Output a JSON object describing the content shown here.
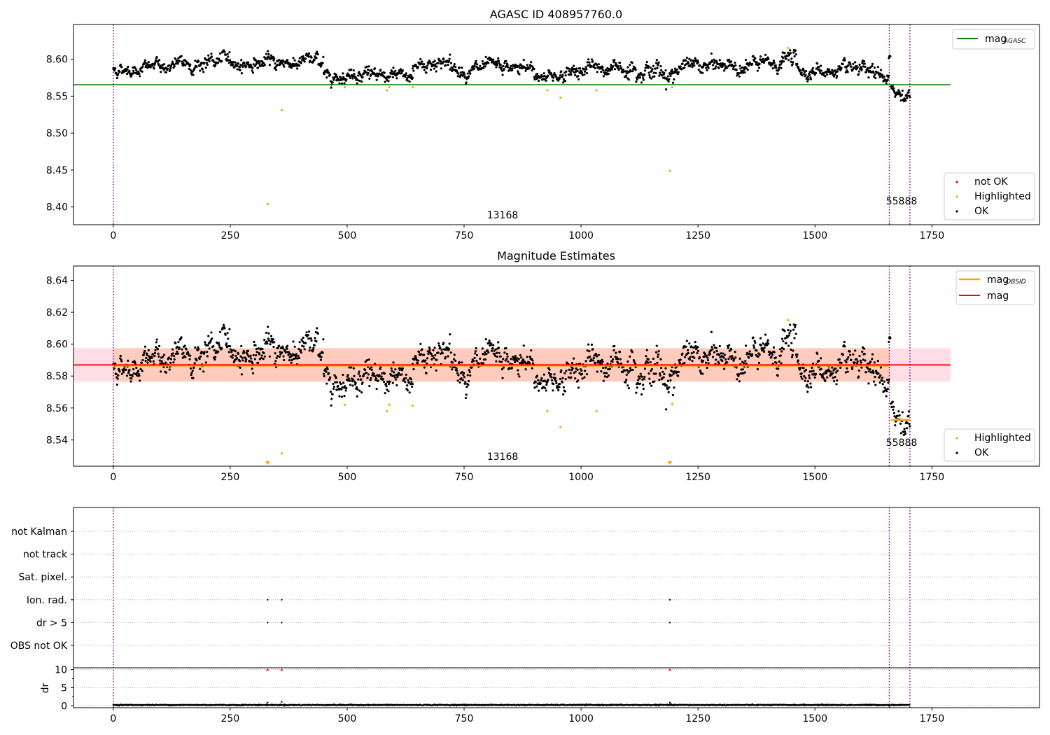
{
  "chart_data": [
    {
      "type": "scatter",
      "title": "AGASC ID 408957760.0",
      "xlabel": "",
      "ylabel": "",
      "xlim": [
        -85,
        1980
      ],
      "ylim": [
        8.376,
        8.647
      ],
      "xticks": [
        0,
        250,
        500,
        750,
        1000,
        1250,
        1500,
        1750
      ],
      "yticks": [
        8.4,
        8.45,
        8.5,
        8.55,
        8.6
      ],
      "ytick_labels": [
        "8.40",
        "8.45",
        "8.50",
        "8.55",
        "8.60"
      ],
      "grid": false,
      "legend_upper": {
        "position": "top-right",
        "entries": [
          {
            "label": "mag",
            "subscript": "AGASC",
            "color": "#008000",
            "kind": "line"
          }
        ]
      },
      "legend_lower": {
        "position": "bottom-right",
        "entries": [
          {
            "label": "not OK",
            "color": "#ff0000",
            "kind": "dot"
          },
          {
            "label": "Highlighted",
            "color": "#ffa500",
            "kind": "dot"
          },
          {
            "label": "OK",
            "color": "#000000",
            "kind": "dot"
          }
        ]
      },
      "vlines": [
        0,
        1659,
        1703
      ],
      "vline_color": "#800080",
      "hline": {
        "y": 8.5655,
        "x0": -85,
        "x1": 1790,
        "color": "#008000"
      },
      "annotations": [
        {
          "text": "13168",
          "x": 830,
          "y": 8.385
        },
        {
          "text": "55888",
          "x": 1681,
          "y": 8.402
        }
      ],
      "segments": [
        {
          "x0": 0,
          "x1": 90,
          "y0": 8.586,
          "y1": 8.59,
          "sd": 0.004
        },
        {
          "x0": 90,
          "x1": 260,
          "y0": 8.589,
          "y1": 8.599,
          "sd": 0.006
        },
        {
          "x0": 260,
          "x1": 450,
          "y0": 8.594,
          "y1": 8.598,
          "sd": 0.005
        },
        {
          "x0": 450,
          "x1": 560,
          "y0": 8.578,
          "y1": 8.585,
          "sd": 0.005
        },
        {
          "x0": 560,
          "x1": 640,
          "y0": 8.572,
          "y1": 8.576,
          "sd": 0.005
        },
        {
          "x0": 640,
          "x1": 720,
          "y0": 8.59,
          "y1": 8.6,
          "sd": 0.006
        },
        {
          "x0": 720,
          "x1": 900,
          "y0": 8.585,
          "y1": 8.586,
          "sd": 0.005
        },
        {
          "x0": 900,
          "x1": 980,
          "y0": 8.578,
          "y1": 8.58,
          "sd": 0.005
        },
        {
          "x0": 980,
          "x1": 1100,
          "y0": 8.586,
          "y1": 8.588,
          "sd": 0.006
        },
        {
          "x0": 1100,
          "x1": 1200,
          "y0": 8.594,
          "y1": 8.578,
          "sd": 0.008
        },
        {
          "x0": 1200,
          "x1": 1430,
          "y0": 8.589,
          "y1": 8.593,
          "sd": 0.006
        },
        {
          "x0": 1430,
          "x1": 1460,
          "y0": 8.602,
          "y1": 8.6,
          "sd": 0.006
        },
        {
          "x0": 1460,
          "x1": 1600,
          "y0": 8.586,
          "y1": 8.58,
          "sd": 0.005
        },
        {
          "x0": 1600,
          "x1": 1658,
          "y0": 8.58,
          "y1": 8.575,
          "sd": 0.006
        },
        {
          "x0": 1658,
          "x1": 1662,
          "y0": 8.595,
          "y1": 8.597,
          "sd": 0.004
        },
        {
          "x0": 1663,
          "x1": 1703,
          "y0": 8.553,
          "y1": 8.555,
          "sd": 0.006
        }
      ],
      "highlighted_points": [
        {
          "x": 330,
          "y": 8.404
        },
        {
          "x": 360,
          "y": 8.531
        },
        {
          "x": 495,
          "y": 8.562
        },
        {
          "x": 585,
          "y": 8.558
        },
        {
          "x": 590,
          "y": 8.562
        },
        {
          "x": 640,
          "y": 8.562
        },
        {
          "x": 928,
          "y": 8.558
        },
        {
          "x": 956,
          "y": 8.548
        },
        {
          "x": 1033,
          "y": 8.558
        },
        {
          "x": 1190,
          "y": 8.449
        },
        {
          "x": 1195,
          "y": 8.562
        },
        {
          "x": 1443,
          "y": 8.615
        }
      ]
    },
    {
      "type": "scatter",
      "title": "Magnitude Estimates",
      "xlabel": "",
      "ylabel": "",
      "xlim": [
        -85,
        1980
      ],
      "ylim": [
        8.5235,
        8.649
      ],
      "xticks": [
        0,
        250,
        500,
        750,
        1000,
        1250,
        1500,
        1750
      ],
      "yticks": [
        8.54,
        8.56,
        8.58,
        8.6,
        8.62,
        8.64
      ],
      "ytick_labels": [
        "8.54",
        "8.56",
        "8.58",
        "8.60",
        "8.62",
        "8.64"
      ],
      "grid": false,
      "legend_upper": {
        "position": "top-right",
        "entries": [
          {
            "label": "mag",
            "subscript": "OBSID",
            "color": "#ffa500",
            "kind": "line"
          },
          {
            "label": "mag",
            "subscript": "",
            "color": "#ff0000",
            "kind": "line"
          }
        ]
      },
      "legend_lower": {
        "position": "bottom-right",
        "entries": [
          {
            "label": "Highlighted",
            "color": "#ffa500",
            "kind": "dot"
          },
          {
            "label": "OK",
            "color": "#000000",
            "kind": "dot"
          }
        ]
      },
      "vlines": [
        0,
        1659,
        1703
      ],
      "vline_color": "#800080",
      "band": {
        "y0": 8.5765,
        "y1": 8.5975,
        "x0": -85,
        "x1": 1790,
        "color": "#ffc0cb"
      },
      "band_obs": {
        "y0": 8.5765,
        "y1": 8.5975,
        "x0": 0,
        "x1": 1659,
        "color": "#ffa573"
      },
      "hline": {
        "y": 8.587,
        "x0": -85,
        "x1": 1790,
        "color": "#ff0000"
      },
      "obs_lines": [
        {
          "y": 8.5865,
          "x0": 0,
          "x1": 1659
        },
        {
          "y": 8.5525,
          "x0": 1663,
          "x1": 1703
        }
      ],
      "annotations": [
        {
          "text": "13168",
          "x": 830,
          "y": 8.527
        },
        {
          "text": "55888",
          "x": 1681,
          "y": 8.537
        }
      ],
      "highlighted_points": [
        {
          "x": 360,
          "y": 8.5315
        },
        {
          "x": 495,
          "y": 8.562
        },
        {
          "x": 585,
          "y": 8.558
        },
        {
          "x": 590,
          "y": 8.562
        },
        {
          "x": 640,
          "y": 8.5615
        },
        {
          "x": 928,
          "y": 8.558
        },
        {
          "x": 956,
          "y": 8.548
        },
        {
          "x": 1033,
          "y": 8.558
        },
        {
          "x": 1195,
          "y": 8.5625
        },
        {
          "x": 1443,
          "y": 8.615
        }
      ],
      "offscale_points": [
        {
          "x": 330
        },
        {
          "x": 1190
        }
      ]
    },
    {
      "type": "scatter",
      "xlabel": "",
      "ylabel": "dr",
      "xlim": [
        -85,
        1980
      ],
      "xticks": [
        0,
        250,
        500,
        750,
        1000,
        1250,
        1500,
        1750
      ],
      "flag_rows": [
        "not Kalman",
        "not track",
        "Sat. pixel.",
        "Ion. rad.",
        "dr > 5",
        "OBS not OK"
      ],
      "flag_points": [
        {
          "row": "Ion. rad.",
          "x": 330
        },
        {
          "row": "Ion. rad.",
          "x": 360
        },
        {
          "row": "Ion. rad.",
          "x": 1190
        },
        {
          "row": "dr > 5",
          "x": 330
        },
        {
          "row": "dr > 5",
          "x": 360
        },
        {
          "row": "dr > 5",
          "x": 1190
        }
      ],
      "dr_ylim": [
        -0.5,
        10.5
      ],
      "dr_yticks": [
        0,
        5,
        10
      ],
      "dr_clipped_points": [
        {
          "x": 330
        },
        {
          "x": 360
        },
        {
          "x": 1190
        }
      ],
      "dr_spikes": [
        {
          "x": 330,
          "y": 0.9
        },
        {
          "x": 360,
          "y": 1.1
        },
        {
          "x": 1190,
          "y": 0.9
        }
      ],
      "dr_baseline": {
        "y": 0.25,
        "sd": 0.07,
        "x0": 0,
        "x1": 1703
      },
      "vlines": [
        0,
        1659,
        1703
      ],
      "vline_color": "#800080"
    }
  ]
}
